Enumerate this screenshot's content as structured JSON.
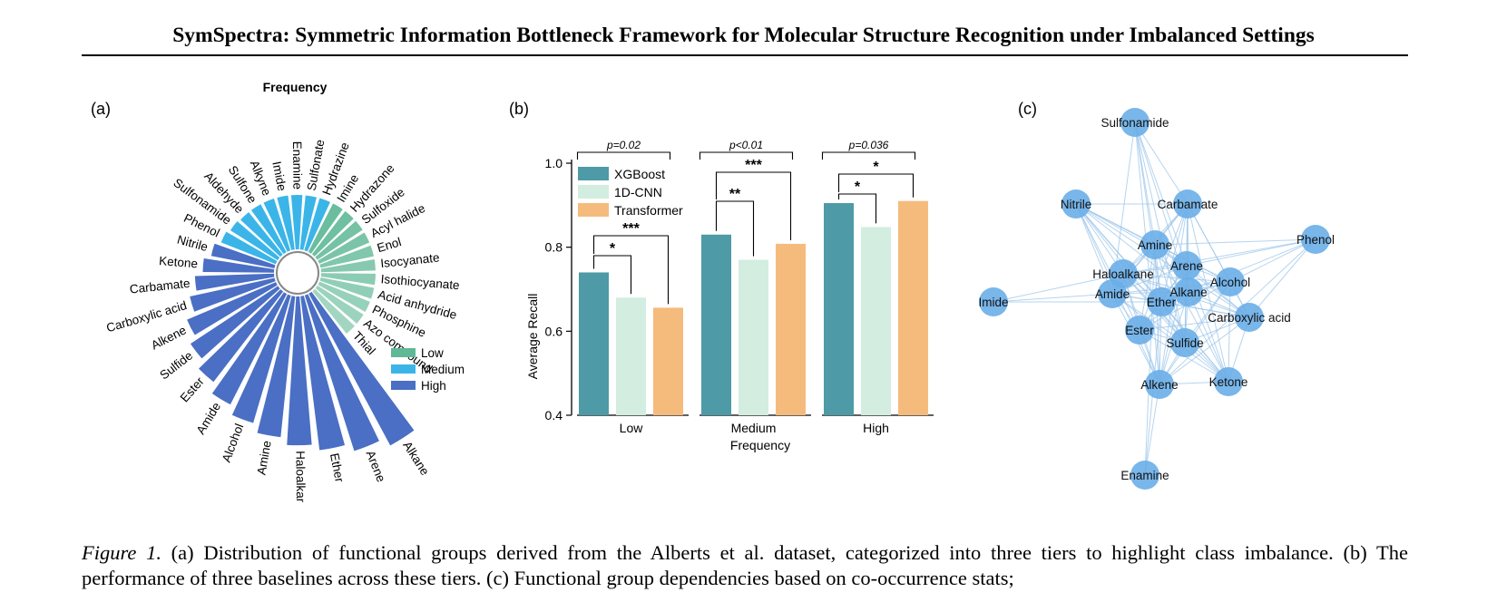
{
  "paper": {
    "title": "SymSpectra: Symmetric Information Bottleneck Framework for Molecular Structure Recognition under Imbalanced Settings"
  },
  "figure_a": {
    "label": "(a)",
    "title": "Frequency",
    "legend": [
      {
        "name": "Low",
        "color": "#5fb896"
      },
      {
        "name": "Medium",
        "color": "#3bb5e8"
      },
      {
        "name": "High",
        "color": "#4a6fc4"
      }
    ]
  },
  "figure_b": {
    "label": "(b)",
    "significance": {
      "low": {
        "p": "p=0.02",
        "star_short": "*",
        "star_long": "***"
      },
      "medium": {
        "p": "p<0.01",
        "star_short": "**",
        "star_long": "***"
      },
      "high": {
        "p": "p=0.036",
        "star_short": "*",
        "star_long": "*"
      }
    }
  },
  "figure_c": {
    "label": "(c)"
  },
  "chart_data": [
    {
      "type": "bar",
      "subtype": "radial",
      "title": "Frequency",
      "categories": [
        "Sulfonate",
        "Hydrazine",
        "Imine",
        "Hydrazone",
        "Sulfoxide",
        "Acyl halide",
        "Enol",
        "Isocyanate",
        "Isothiocyanate",
        "Acid anhydride",
        "Phosphine",
        "Azo compound",
        "Thial",
        "Alkane",
        "Arene",
        "Ether",
        "Haloalkane",
        "Amine",
        "Alcohol",
        "Amide",
        "Ester",
        "Sulfide",
        "Alkene",
        "Carboxylic acid",
        "Carbamate",
        "Ketone",
        "Nitrile",
        "Phenol",
        "Sulfonamide",
        "Aldehyde",
        "Sulfone",
        "Alkyne",
        "Imide",
        "Enamine"
      ],
      "tiers": [
        "Medium",
        "Medium",
        "Low",
        "Low",
        "Low",
        "Low",
        "Low",
        "Low",
        "Low",
        "Low",
        "Low",
        "Low",
        "Low",
        "High",
        "High",
        "High",
        "High",
        "High",
        "High",
        "High",
        "High",
        "High",
        "High",
        "High",
        "High",
        "High",
        "High",
        "Medium",
        "Medium",
        "Medium",
        "Medium",
        "Medium",
        "Medium",
        "Medium"
      ],
      "values": [
        1.0,
        1.0,
        0.95,
        0.9,
        0.85,
        0.8,
        0.72,
        0.67,
        0.62,
        0.57,
        0.5,
        0.42,
        0.32,
        6.5,
        6.05,
        5.65,
        5.35,
        5.0,
        4.6,
        4.2,
        3.75,
        3.35,
        3.0,
        2.6,
        2.3,
        2.0,
        1.75,
        1.55,
        1.45,
        1.35,
        1.25,
        1.2,
        1.1,
        1.05
      ],
      "legend": [
        "Low",
        "Medium",
        "High"
      ],
      "legend_position": "bottom-right"
    },
    {
      "type": "bar",
      "categories": [
        "Low",
        "Medium",
        "High"
      ],
      "series": [
        {
          "name": "XGBoost",
          "color": "#4e9aa6",
          "values": [
            0.74,
            0.83,
            0.905
          ]
        },
        {
          "name": "1D-CNN",
          "color": "#d3ede0",
          "values": [
            0.68,
            0.77,
            0.848
          ]
        },
        {
          "name": "Transformer",
          "color": "#f5bb7c",
          "values": [
            0.656,
            0.808,
            0.91
          ]
        }
      ],
      "xlabel": "Frequency",
      "ylabel": "Average Recall",
      "ylim": [
        0.4,
        1.0
      ],
      "yticks": [
        "0.4",
        "0.6",
        "0.8",
        "1.0"
      ],
      "legend_position": "top-left"
    },
    {
      "type": "network",
      "nodes": [
        "Sulfonamide",
        "Nitrile",
        "Carbamate",
        "Phenol",
        "Amine",
        "Arene",
        "Haloalkane",
        "Alcohol",
        "Imide",
        "Amide",
        "Ether",
        "Alkane",
        "Carboxylic acid",
        "Ester",
        "Sulfide",
        "Alkene",
        "Ketone",
        "Enamine"
      ],
      "node_color": "#6aaee8",
      "edge_color": "#9cc6ea"
    }
  ]
}
